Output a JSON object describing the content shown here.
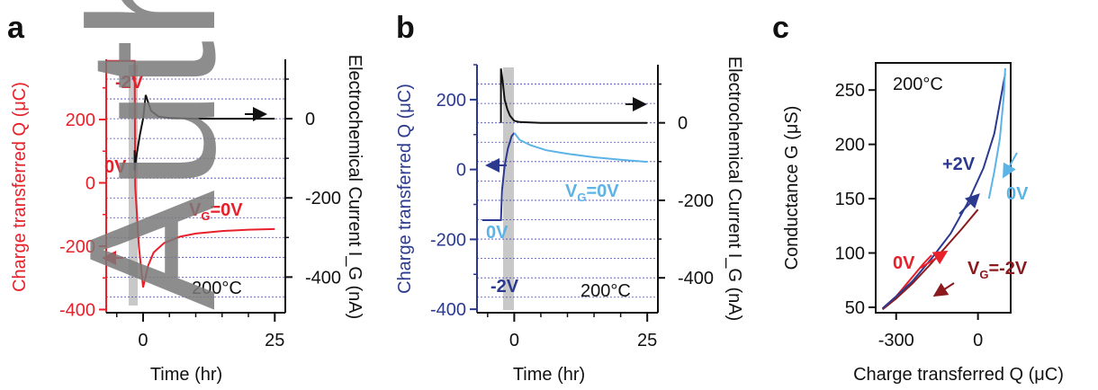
{
  "watermark": "Author",
  "colors": {
    "red": "#e8202a",
    "darkblue": "#2b3a8f",
    "lightblue": "#5bb3e6",
    "darkred": "#8b1a1e",
    "black": "#111111",
    "shade": "#c8c8c8",
    "grid": "#4a4ab0"
  },
  "chart_data": [
    {
      "panel": "a",
      "type": "line",
      "xlabel": "Time (hr)",
      "ylabel_left": "Charge transferred Q (μC)",
      "ylabel_right": "Electrochemical Current I_G (nA)",
      "xlim": [
        -7,
        27
      ],
      "ylim_left": [
        -410,
        390
      ],
      "ylim_right": [
        -490,
        150
      ],
      "x_ticks": [
        "0",
        "25"
      ],
      "y_ticks_left": [
        "-400",
        "-200",
        "0",
        "200"
      ],
      "y_ticks_right": [
        "-400",
        "-200",
        "0"
      ],
      "temperature": "200°C",
      "annotations": {
        "m2v": "-2V",
        "zero": "0V",
        "vg_prefix": "V",
        "vg_sub": "G",
        "vg_suffix": "=0V"
      },
      "series": [
        {
          "color": "#e8202a",
          "x": [
            -7,
            -3.5,
            -1.6,
            -1.5,
            -0.8,
            0,
            1,
            2,
            4,
            7,
            10,
            15,
            20,
            25
          ],
          "y": [
            385,
            385,
            385,
            -10,
            -200,
            -330,
            -260,
            -220,
            -190,
            -170,
            -160,
            -152,
            -148,
            -146
          ]
        },
        {
          "color": "#111111",
          "x": [
            -1.6,
            -1.6,
            -1.2,
            -0.6,
            0,
            0.5,
            1.5,
            3,
            5,
            10,
            15,
            20,
            25
          ],
          "y2": [
            -80,
            -130,
            -90,
            -40,
            0,
            60,
            20,
            5,
            2,
            0,
            0,
            0,
            0
          ]
        }
      ]
    },
    {
      "panel": "b",
      "type": "line",
      "xlabel": "Time (hr)",
      "ylabel_left": "Charge transferred Q (μC)",
      "ylabel_right": "Electrochemical Current I_G (nA)",
      "xlim": [
        -7,
        27
      ],
      "ylim_left": [
        -410,
        300
      ],
      "ylim_right": [
        -490,
        150
      ],
      "x_ticks": [
        "0",
        "25"
      ],
      "y_ticks_left": [
        "-400",
        "-200",
        "0",
        "200"
      ],
      "y_ticks_right": [
        "-400",
        "-200",
        "0"
      ],
      "temperature": "200°C",
      "annotations": {
        "m2v": "-2V",
        "zero": "0V",
        "vg_prefix": "V",
        "vg_sub": "G",
        "vg_suffix": "=0V"
      },
      "series": [
        {
          "color": "#2b3a8f",
          "x": [
            -6,
            -2.5,
            -2.3,
            -1.8,
            -1.2,
            -0.5,
            0
          ],
          "y": [
            -145,
            -145,
            -60,
            10,
            60,
            95,
            105
          ]
        },
        {
          "color": "#5bb3e6",
          "x": [
            0,
            1,
            3,
            6,
            10,
            15,
            20,
            25
          ],
          "y": [
            105,
            85,
            70,
            55,
            45,
            35,
            28,
            22
          ]
        },
        {
          "color": "#111111",
          "x": [
            -2.5,
            -2.5,
            -2.2,
            -1.8,
            -1.3,
            -0.8,
            0,
            1,
            5,
            10,
            15,
            20,
            25
          ],
          "y2": [
            0,
            140,
            110,
            60,
            35,
            18,
            5,
            2,
            0,
            0,
            0,
            0,
            0
          ]
        }
      ]
    },
    {
      "panel": "c",
      "type": "line",
      "xlabel": "Charge transferred Q (μC)",
      "ylabel": "Conductance G (μS)",
      "xlim": [
        -375,
        120
      ],
      "ylim": [
        45,
        275
      ],
      "x_ticks": [
        "-300",
        "0"
      ],
      "y_ticks": [
        "50",
        "100",
        "150",
        "200",
        "250"
      ],
      "temperature": "200°C",
      "annotations": {
        "p2v": "+2V",
        "zero_lb": "0V",
        "zero_red": "0V",
        "vg_prefix": "V",
        "vg_sub": "G",
        "vg_suffix": "=-2V"
      },
      "series": [
        {
          "color": "#8b1a1e",
          "x": [
            -350,
            -300,
            -240,
            -180,
            -120,
            -60,
            0
          ],
          "y": [
            48,
            58,
            72,
            88,
            105,
            122,
            140
          ]
        },
        {
          "color": "#e8202a",
          "x": [
            -350,
            -300,
            -250,
            -200,
            -170
          ],
          "y": [
            49,
            60,
            75,
            90,
            98
          ]
        },
        {
          "color": "#2b3a8f",
          "x": [
            -350,
            -300,
            -240,
            -170,
            -100,
            -40,
            20,
            60,
            100
          ],
          "y": [
            49,
            60,
            74,
            95,
            118,
            145,
            178,
            210,
            265
          ]
        },
        {
          "color": "#5bb3e6",
          "x": [
            40,
            60,
            80,
            95,
            100
          ],
          "y": [
            150,
            175,
            205,
            245,
            270
          ]
        }
      ]
    }
  ]
}
